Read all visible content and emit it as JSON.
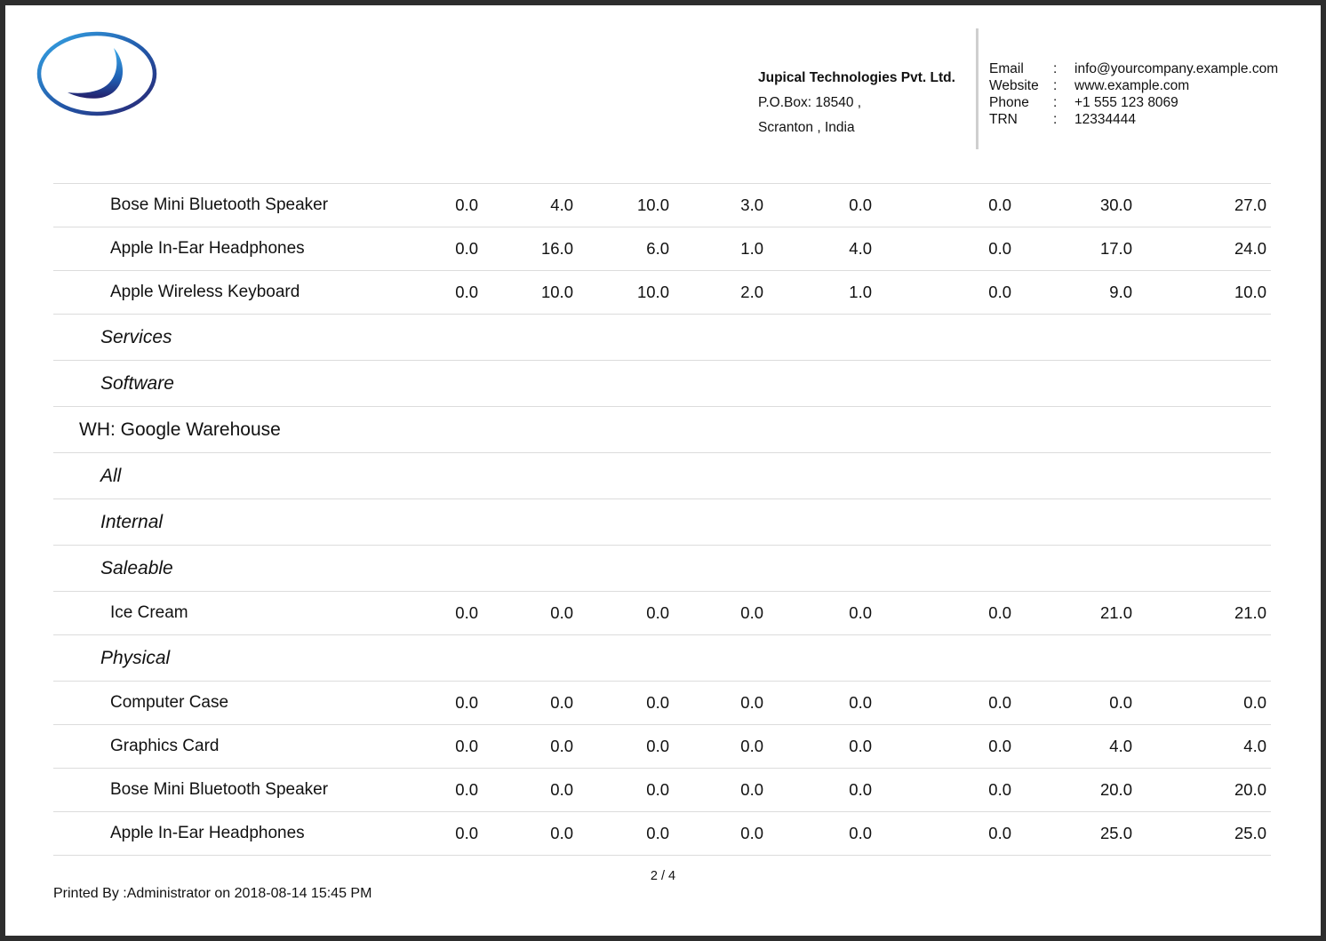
{
  "header": {
    "company_name": "Jupical Technologies Pvt. Ltd.",
    "address_line1": "P.O.Box: 18540 ,",
    "address_line2": "Scranton , India",
    "logo_icon": "company-logo-icon",
    "colors": {
      "logo_ring": "#1f3f8a",
      "logo_accent": "#35a6e6"
    },
    "contacts": [
      {
        "label": "Email",
        "sep": ":",
        "value": "info@yourcompany.example.com"
      },
      {
        "label": "Website",
        "sep": ":",
        "value": "www.example.com"
      },
      {
        "label": "Phone",
        "sep": ":",
        "value": "+1 555 123 8069"
      },
      {
        "label": "TRN",
        "sep": ":",
        "value": "12334444"
      }
    ]
  },
  "rows": [
    {
      "type": "product",
      "label": "Bose Mini Bluetooth Speaker",
      "values": [
        "0.0",
        "4.0",
        "10.0",
        "3.0",
        "0.0",
        "0.0",
        "30.0",
        "27.0"
      ]
    },
    {
      "type": "product",
      "label": "Apple In-Ear Headphones",
      "values": [
        "0.0",
        "16.0",
        "6.0",
        "1.0",
        "4.0",
        "0.0",
        "17.0",
        "24.0"
      ]
    },
    {
      "type": "product",
      "label": "Apple Wireless Keyboard",
      "values": [
        "0.0",
        "10.0",
        "10.0",
        "2.0",
        "1.0",
        "0.0",
        "9.0",
        "10.0"
      ]
    },
    {
      "type": "category",
      "label": "Services"
    },
    {
      "type": "category",
      "label": "Software"
    },
    {
      "type": "warehouse",
      "label": "WH: Google Warehouse"
    },
    {
      "type": "category",
      "label": "All"
    },
    {
      "type": "category",
      "label": "Internal"
    },
    {
      "type": "category",
      "label": "Saleable"
    },
    {
      "type": "product",
      "label": "Ice Cream",
      "values": [
        "0.0",
        "0.0",
        "0.0",
        "0.0",
        "0.0",
        "0.0",
        "21.0",
        "21.0"
      ]
    },
    {
      "type": "category",
      "label": "Physical"
    },
    {
      "type": "product",
      "label": "Computer Case",
      "values": [
        "0.0",
        "0.0",
        "0.0",
        "0.0",
        "0.0",
        "0.0",
        "0.0",
        "0.0"
      ]
    },
    {
      "type": "product",
      "label": "Graphics Card",
      "values": [
        "0.0",
        "0.0",
        "0.0",
        "0.0",
        "0.0",
        "0.0",
        "4.0",
        "4.0"
      ]
    },
    {
      "type": "product",
      "label": "Bose Mini Bluetooth Speaker",
      "values": [
        "0.0",
        "0.0",
        "0.0",
        "0.0",
        "0.0",
        "0.0",
        "20.0",
        "20.0"
      ]
    },
    {
      "type": "product",
      "label": "Apple In-Ear Headphones",
      "values": [
        "0.0",
        "0.0",
        "0.0",
        "0.0",
        "0.0",
        "0.0",
        "25.0",
        "25.0"
      ]
    }
  ],
  "footer": {
    "pagination": "2 / 4",
    "printed_by": "Printed By :Administrator on 2018-08-14 15:45 PM"
  }
}
